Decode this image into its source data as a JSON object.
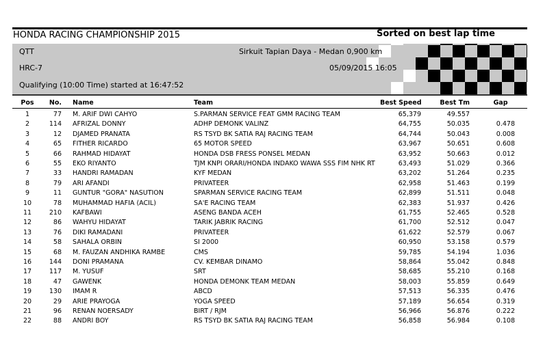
{
  "header": {
    "title": "HONDA RACING CHAMPIONSHIP 2015",
    "sort_note": "Sorted on best lap time"
  },
  "info": {
    "session": "QTT",
    "circuit": "Sirkuit Tapian Daya - Medan 0,900 km",
    "event": "HRC-7",
    "datetime": "05/09/2015 16:05",
    "description": "Qualifying (10:00 Time) started at 16:47:52"
  },
  "table": {
    "columns": [
      "Pos",
      "No.",
      "Name",
      "Team",
      "Best Speed",
      "Best Tm",
      "Gap"
    ],
    "rows": [
      [
        "1",
        "77",
        "M. ARIF DWI CAHYO",
        "S.PARMAN SERVICE FEAT GMM RACING TEAM",
        "65,379",
        "49.557"
      ],
      [
        "2",
        "114",
        "AFRIZAL DONNY",
        "ADHP DEMONK VALINZ",
        "64,755",
        "50.035",
        "0.478"
      ],
      [
        "3",
        "12",
        "DJAMED PRANATA",
        "RS TSYD BK SATIA RAJ RACING TEAM",
        "64,744",
        "50.043",
        "0.008"
      ],
      [
        "4",
        "65",
        "FITHER RICARDO",
        "65 MOTOR SPEED",
        "63,967",
        "50.651",
        "0.608"
      ],
      [
        "5",
        "66",
        "RAHMAD HIDAYAT",
        "HONDA DSB FRESS PONSEL MEDAN",
        "63,952",
        "50.663",
        "0.012"
      ],
      [
        "6",
        "55",
        "EKO RIYANTO",
        "TJM KNPI ORARI/HONDA INDAKO WAWA SSS FIM NHK RT",
        "63,493",
        "51.029",
        "0.366"
      ],
      [
        "7",
        "33",
        "HANDRI RAMADAN",
        "KYF MEDAN",
        "63,202",
        "51.264",
        "0.235"
      ],
      [
        "8",
        "79",
        "ARI AFANDI",
        "PRIVATEER",
        "62,958",
        "51.463",
        "0.199"
      ],
      [
        "9",
        "11",
        "GUNTUR \"GORA\" NASUTION",
        "SPARMAN SERVICE RACING TEAM",
        "62,899",
        "51.511",
        "0.048"
      ],
      [
        "10",
        "78",
        "MUHAMMAD HAFIA (ACIL)",
        "SA'E RACING TEAM",
        "62,383",
        "51.937",
        "0.426"
      ],
      [
        "11",
        "210",
        "KAFBAWI",
        "ASENG BANDA ACEH",
        "61,755",
        "52.465",
        "0.528"
      ],
      [
        "12",
        "86",
        "WAHYU HIDAYAT",
        "TARIK JABRIK RACING",
        "61,700",
        "52.512",
        "0.047"
      ],
      [
        "13",
        "76",
        "DIKI RAMADANI",
        "PRIVATEER",
        "61,622",
        "52.579",
        "0.067"
      ],
      [
        "14",
        "58",
        "SAHALA ORBIN",
        "SI 2000",
        "60,950",
        "53.158",
        "0.579"
      ],
      [
        "15",
        "68",
        "M. FAUZAN ANDHIKA RAMBE",
        "CMS",
        "59,785",
        "54.194",
        "1.036"
      ],
      [
        "16",
        "144",
        "DONI PRAMANA",
        "CV. KEMBAR DINAMO",
        "58,864",
        "55.042",
        "0.848"
      ],
      [
        "17",
        "117",
        "M. YUSUF",
        "SRT",
        "58,685",
        "55.210",
        "0.168"
      ],
      [
        "18",
        "47",
        "GAWENK",
        "HONDA DEMONK TEAM MEDAN",
        "58,003",
        "55.859",
        "0.649"
      ],
      [
        "19",
        "130",
        "IMAM R",
        "ABCD",
        "57,513",
        "56.335",
        "0.476"
      ],
      [
        "20",
        "29",
        "ARIE PRAYOGA",
        "YOGA SPEED",
        "57,189",
        "56.654",
        "0.319"
      ],
      [
        "21",
        "96",
        "RENAN NOERSADY",
        "BIRT / RJM",
        "56,966",
        "56.876",
        "0.222"
      ],
      [
        "22",
        "88",
        "ANDRI BOY",
        "RS TSYD BK SATIA RAJ RACING TEAM",
        "56,858",
        "56.984",
        "0.108"
      ]
    ]
  }
}
